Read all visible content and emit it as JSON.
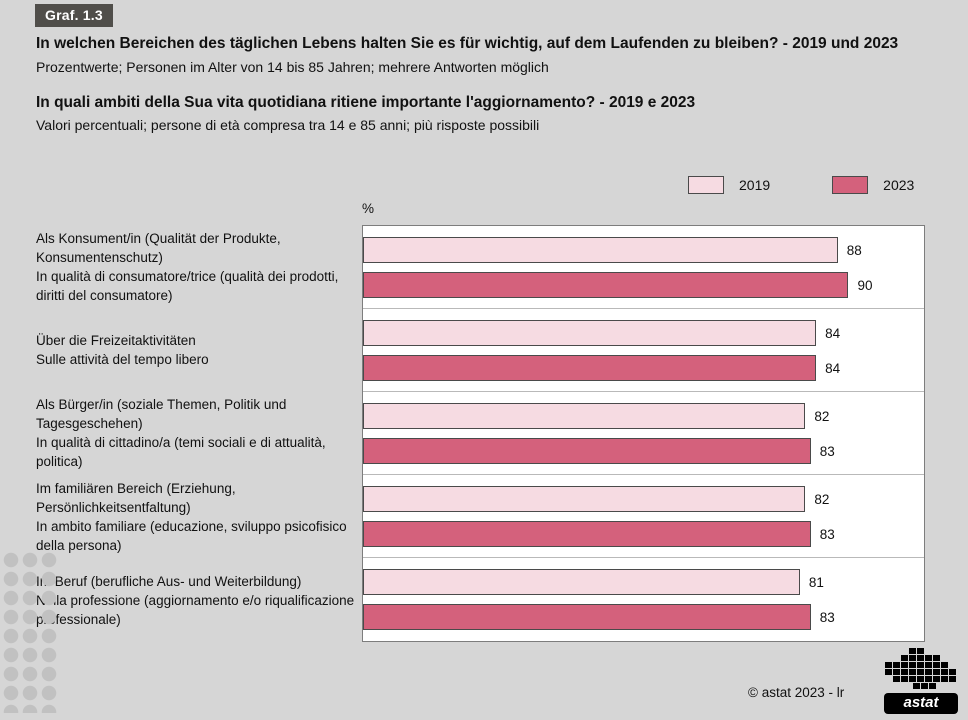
{
  "page": {
    "graf_label": "Graf. 1.3",
    "title_de": "In welchen Bereichen des täglichen Lebens halten Sie es für wichtig, auf dem Laufenden zu bleiben? - 2019 und 2023",
    "subtitle_de": "Prozentwerte; Personen im Alter von 14 bis 85 Jahren; mehrere Antworten möglich",
    "title_it": "In quali ambiti della Sua vita quotidiana ritiene importante l'aggiornamento? - 2019 e 2023",
    "subtitle_it": "Valori percentuali; persone di età compresa tra 14 e 85 anni; più risposte possibili",
    "copyright": "© astat 2023 - lr",
    "logo_text": "astat"
  },
  "chart_data": {
    "type": "bar",
    "orientation": "horizontal",
    "axis_label": "%",
    "xlim": [
      0,
      104
    ],
    "grid": "group-separators",
    "legend_position": "top-right",
    "legend": [
      {
        "label": "2019",
        "color": "#f6dbe2"
      },
      {
        "label": "2023",
        "color": "#d4617c"
      }
    ],
    "categories": [
      {
        "de": "Als Konsument/in (Qualität der Produkte, Konsumentenschutz)",
        "it": "In qualità di consumatore/trice (qualità dei prodotti, diritti del consumatore)"
      },
      {
        "de": "Über die Freizeitaktivitäten",
        "it": "Sulle attività del tempo libero"
      },
      {
        "de": "Als Bürger/in (soziale Themen, Politik und Tagesgeschehen)",
        "it": "In qualità di cittadino/a (temi sociali e di attualità, politica)"
      },
      {
        "de": "Im familiären Bereich (Erziehung, Persönlichkeitsentfaltung)",
        "it": "In ambito familiare (educazione, sviluppo psicofisico della persona)"
      },
      {
        "de": "Im Beruf (berufliche Aus- und Weiterbildung)",
        "it": "Nella professione (aggiornamento e/o riqualificazione professionale)"
      }
    ],
    "series": [
      {
        "name": "2019",
        "values": [
          88,
          84,
          82,
          82,
          81
        ]
      },
      {
        "name": "2023",
        "values": [
          90,
          84,
          83,
          83,
          83
        ]
      }
    ]
  }
}
